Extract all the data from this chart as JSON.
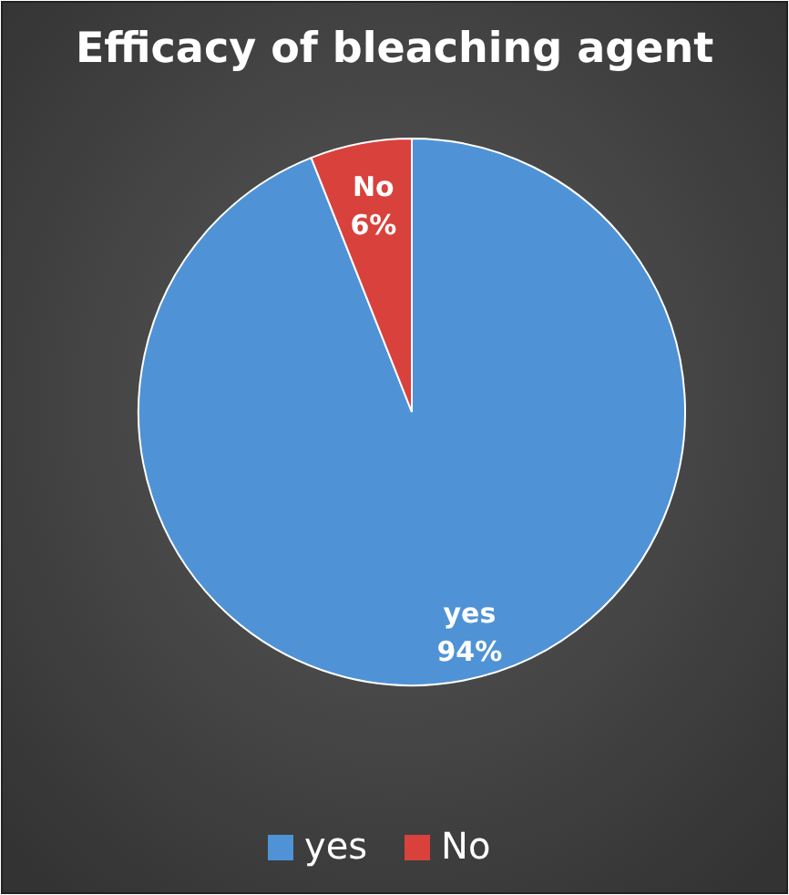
{
  "chart_data": {
    "type": "pie",
    "title": "Efficacy of bleaching agent",
    "categories": [
      "yes",
      "No"
    ],
    "values": [
      94,
      6
    ],
    "colors": [
      "#4f93d6",
      "#d9413c"
    ],
    "value_labels": [
      "94%",
      "6%"
    ],
    "legend": "bottom"
  }
}
